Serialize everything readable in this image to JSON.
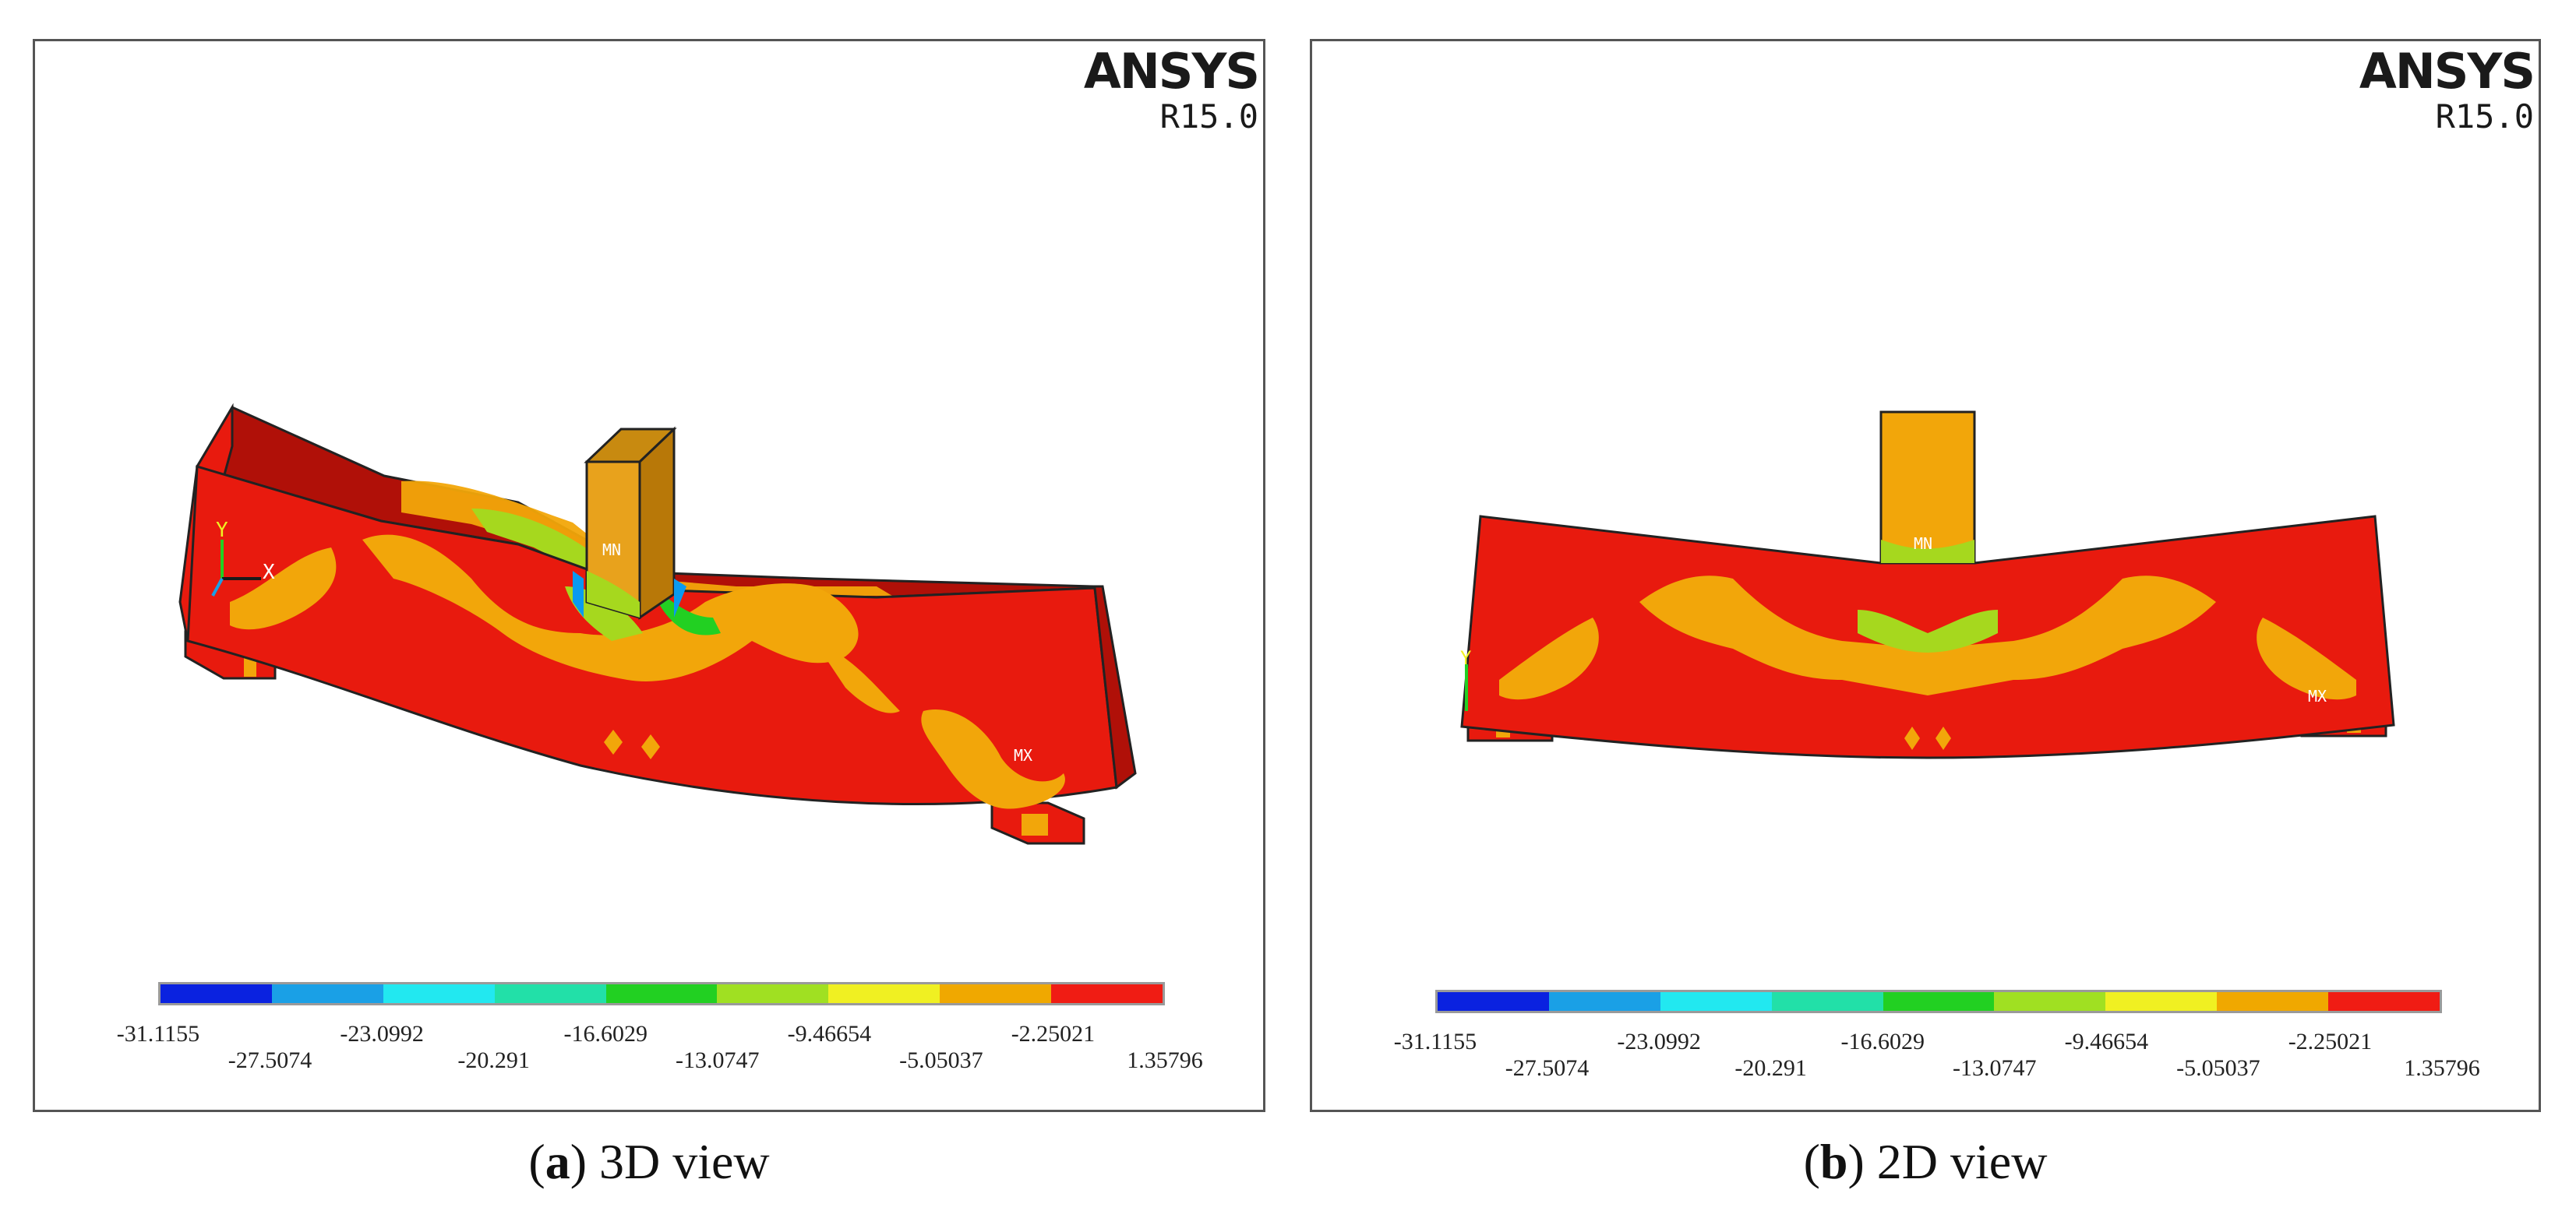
{
  "panels": [
    {
      "brand": "ANSYS",
      "version": "R15.0",
      "caption": {
        "open": "(",
        "letter": "a",
        "text": ") 3D view"
      },
      "view": "3D"
    },
    {
      "brand": "ANSYS",
      "version": "R15.0",
      "caption": {
        "open": "(",
        "letter": "b",
        "text": ") 2D view"
      },
      "view": "2D"
    }
  ],
  "legend": {
    "colors": [
      "#0a22e0",
      "#1aa0e6",
      "#22e8f0",
      "#22e0a8",
      "#22d022",
      "#a0e022",
      "#f0f022",
      "#f0a800",
      "#f01c14"
    ],
    "upper_labels": [
      "-31.1155",
      "-23.0992",
      "-16.6029",
      "-9.46654",
      "-2.25021"
    ],
    "lower_labels": [
      "-27.5074",
      "-20.291",
      "-13.0747",
      "-5.05037",
      "1.35796"
    ]
  },
  "axes_triad": {
    "y": "Y",
    "x": "X"
  },
  "markers": {
    "mn": "MN",
    "mx": "MX"
  },
  "colors": {
    "beam_red": "#e81a0e",
    "beam_dark": "#b01008",
    "orange": "#f2a60a",
    "block": "#e8a21c"
  }
}
